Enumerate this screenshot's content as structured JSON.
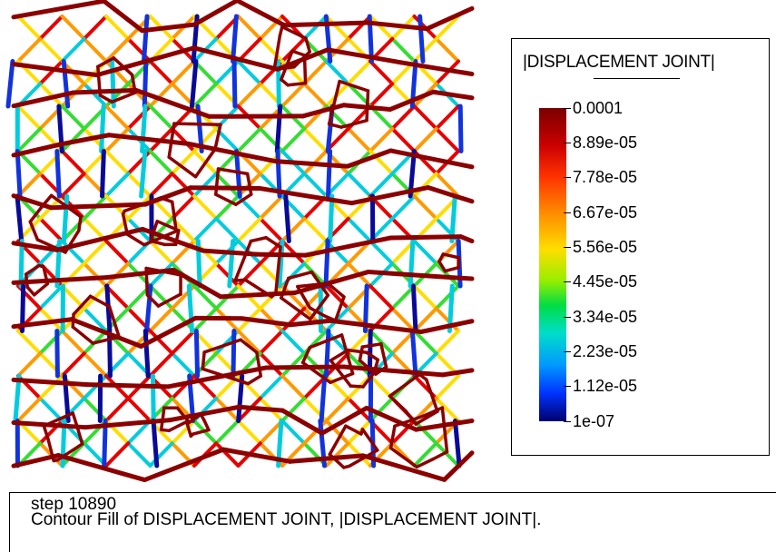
{
  "legend": {
    "title": "|DISPLACEMENT JOINT|",
    "ticks": [
      "0.0001",
      "8.89e-05",
      "7.78e-05",
      "6.67e-05",
      "5.56e-05",
      "4.45e-05",
      "3.34e-05",
      "2.23e-05",
      "1.12e-05",
      "1e-07"
    ],
    "colormap": [
      "#7a0000",
      "#cc0000",
      "#ff3300",
      "#ff8800",
      "#ffdd00",
      "#99ee00",
      "#00dd44",
      "#00ddcc",
      "#0099ff",
      "#0033ff",
      "#00006e"
    ]
  },
  "footer": {
    "step": "step 10890",
    "description": "Contour Fill of DISPLACEMENT JOINT, |DISPLACEMENT JOINT|."
  },
  "colors": {
    "darkred": "#8b0000",
    "red": "#e60000",
    "orange": "#ff9900",
    "yellow": "#ffdd00",
    "green": "#33dd33",
    "cyan": "#00ccdd",
    "blue": "#1133dd",
    "navy": "#0a0a99"
  }
}
